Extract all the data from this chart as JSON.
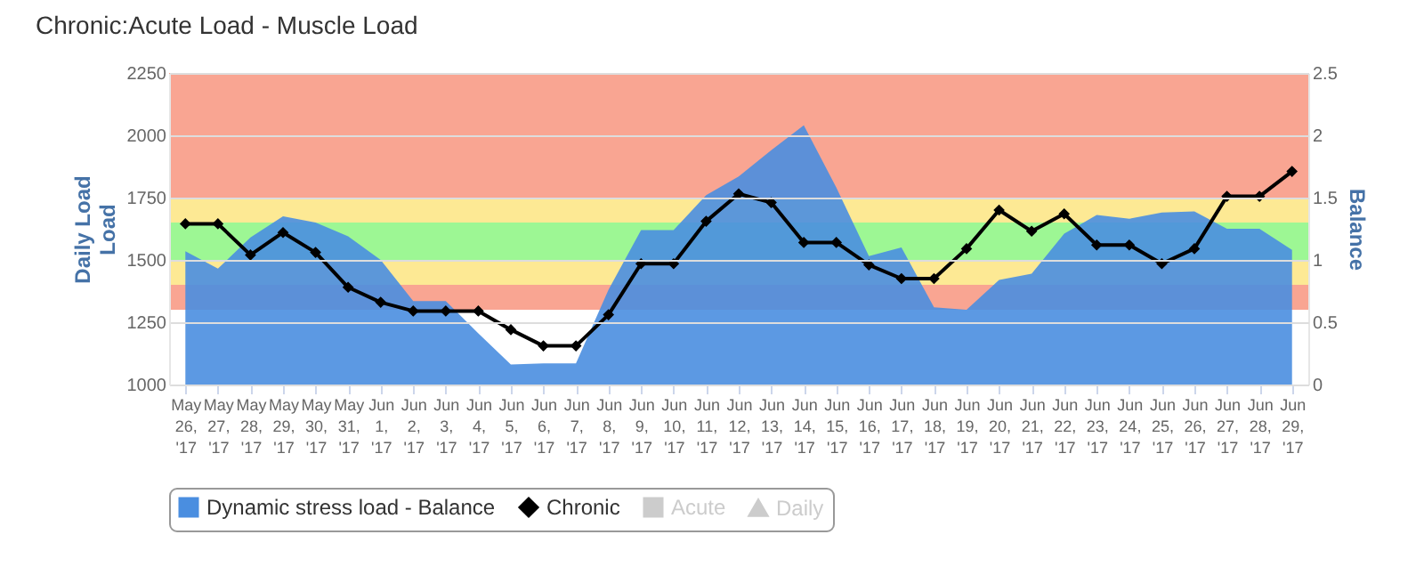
{
  "chart_data": {
    "type": "line",
    "title": "Chronic:Acute Load - Muscle Load",
    "ylabel": "Load",
    "y2label": "Balance",
    "annotations": [
      "Daily Load"
    ],
    "categories": [
      "May 26, '17",
      "May 27, '17",
      "May 28, '17",
      "May 29, '17",
      "May 30, '17",
      "May 31, '17",
      "Jun 1, '17",
      "Jun 2, '17",
      "Jun 3, '17",
      "Jun 4, '17",
      "Jun 5, '17",
      "Jun 6, '17",
      "Jun 7, '17",
      "Jun 8, '17",
      "Jun 9, '17",
      "Jun 10, '17",
      "Jun 11, '17",
      "Jun 12, '17",
      "Jun 13, '17",
      "Jun 14, '17",
      "Jun 15, '17",
      "Jun 16, '17",
      "Jun 17, '17",
      "Jun 18, '17",
      "Jun 19, '17",
      "Jun 20, '17",
      "Jun 21, '17",
      "Jun 22, '17",
      "Jun 23, '17",
      "Jun 24, '17",
      "Jun 25, '17",
      "Jun 26, '17",
      "Jun 27, '17",
      "Jun 28, '17",
      "Jun 29, '17"
    ],
    "series": [
      {
        "name": "Dynamic stress load - Balance",
        "type": "area",
        "axis": "y2",
        "color": "#4a8ee0",
        "values": [
          1.07,
          0.93,
          1.18,
          1.35,
          1.3,
          1.19,
          1.0,
          0.67,
          0.67,
          0.41,
          0.16,
          0.17,
          0.17,
          0.76,
          1.24,
          1.24,
          1.52,
          1.67,
          1.88,
          2.08,
          1.58,
          1.03,
          1.1,
          0.62,
          0.6,
          0.84,
          0.89,
          1.21,
          1.36,
          1.33,
          1.38,
          1.39,
          1.25,
          1.25,
          1.08
        ]
      },
      {
        "name": "Chronic",
        "marker": "diamond",
        "color": "#000000",
        "values": [
          1645,
          1645,
          1520,
          1610,
          1530,
          1390,
          1330,
          1295,
          1295,
          1295,
          1220,
          1155,
          1155,
          1280,
          1485,
          1485,
          1655,
          1765,
          1730,
          1570,
          1570,
          1480,
          1425,
          1425,
          1545,
          1700,
          1615,
          1685,
          1560,
          1560,
          1485,
          1545,
          1755,
          1755,
          1855
        ]
      },
      {
        "name": "Acute",
        "marker": "square",
        "color": "#cccccc",
        "values": [
          null,
          null,
          null,
          null,
          null,
          null,
          null,
          null,
          null,
          null,
          null,
          null,
          null,
          null,
          null,
          null,
          null,
          null,
          null,
          null,
          null,
          null,
          null,
          null,
          null,
          null,
          null,
          null,
          null,
          null,
          null,
          null,
          null,
          null,
          null
        ]
      },
      {
        "name": "Daily",
        "marker": "triangle",
        "color": "#cccccc",
        "values": [
          null,
          null,
          null,
          null,
          null,
          null,
          null,
          null,
          null,
          null,
          null,
          null,
          null,
          null,
          null,
          null,
          null,
          null,
          null,
          null,
          null,
          null,
          null,
          null,
          null,
          null,
          null,
          null,
          null,
          null,
          null,
          null,
          null,
          null,
          null
        ]
      }
    ],
    "ylim": [
      1000,
      2250
    ],
    "yticks": [
      1000,
      1250,
      1500,
      1750,
      2000,
      2250
    ],
    "y2lim": [
      0,
      2.5
    ],
    "y2ticks": [
      0,
      0.5,
      1,
      1.5,
      2,
      2.5
    ],
    "bands": [
      {
        "axis": "y2",
        "from": 0.6,
        "to": 0.8,
        "color": "#f9a592"
      },
      {
        "axis": "y2",
        "from": 0.8,
        "to": 1.0,
        "color": "#fde994"
      },
      {
        "axis": "y2",
        "from": 1.0,
        "to": 1.3,
        "color": "#9df794"
      },
      {
        "axis": "y2",
        "from": 1.3,
        "to": 1.5,
        "color": "#fde994"
      },
      {
        "axis": "y2",
        "from": 1.5,
        "to": 2.5,
        "color": "#f9a592"
      }
    ],
    "grid": "y",
    "legend": "bottom"
  }
}
